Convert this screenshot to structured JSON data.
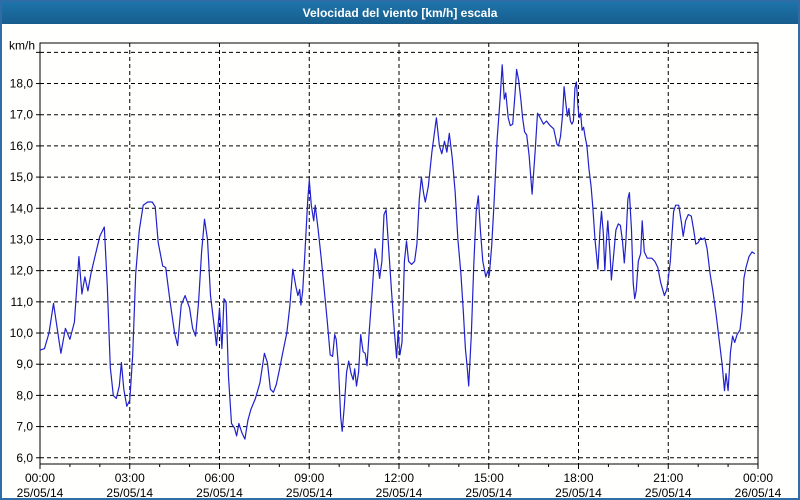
{
  "window": {
    "title": "Velocidad del viento [km/h] escala"
  },
  "colors": {
    "title_bar_bg": "#1a6a9c",
    "title_text": "#ffffff",
    "outer_border": "#2e6da6",
    "plot_bg": "#fffffd",
    "grid": "#000000",
    "axis_text": "#000000",
    "line": "#2121cc"
  },
  "chart_data": {
    "type": "line",
    "title": "Velocidad del viento [km/h] escala",
    "ylabel": "km/h",
    "y_unit_label": "km/h",
    "grid": "dashed",
    "legend": "none",
    "ylim": [
      5.8,
      19.3
    ],
    "y_grid_values": [
      6,
      7,
      8,
      9,
      10,
      11,
      12,
      13,
      14,
      15,
      16,
      17,
      18,
      19
    ],
    "y_ticks": [
      {
        "value": 6,
        "label": "6,0"
      },
      {
        "value": 7,
        "label": "7,0"
      },
      {
        "value": 8,
        "label": "8,0"
      },
      {
        "value": 9,
        "label": "9,0"
      },
      {
        "value": 10,
        "label": "10,0"
      },
      {
        "value": 11,
        "label": "11,0"
      },
      {
        "value": 12,
        "label": "12,0"
      },
      {
        "value": 13,
        "label": "13,0"
      },
      {
        "value": 14,
        "label": "14,0"
      },
      {
        "value": 15,
        "label": "15,0"
      },
      {
        "value": 16,
        "label": "16,0"
      },
      {
        "value": 17,
        "label": "17,0"
      },
      {
        "value": 18,
        "label": "18,0"
      }
    ],
    "xlim_hours": [
      0,
      24
    ],
    "minor_tick_every_hours": 1,
    "x_ticks": [
      {
        "hour": 0,
        "time": "00:00",
        "date": "25/05/14"
      },
      {
        "hour": 3,
        "time": "03:00",
        "date": "25/05/14"
      },
      {
        "hour": 6,
        "time": "06:00",
        "date": "25/05/14"
      },
      {
        "hour": 9,
        "time": "09:00",
        "date": "25/05/14"
      },
      {
        "hour": 12,
        "time": "12:00",
        "date": "25/05/14"
      },
      {
        "hour": 15,
        "time": "15:00",
        "date": "25/05/14"
      },
      {
        "hour": 18,
        "time": "18:00",
        "date": "25/05/14"
      },
      {
        "hour": 21,
        "time": "21:00",
        "date": "25/05/14"
      },
      {
        "hour": 24,
        "time": "00:00",
        "date": "26/05/14"
      }
    ],
    "series": [
      {
        "name": "Velocidad del viento [km/h]",
        "points": [
          [
            0,
            9.45
          ],
          [
            0.15,
            9.5
          ],
          [
            0.3,
            10.0
          ],
          [
            0.45,
            10.95
          ],
          [
            0.55,
            10.3
          ],
          [
            0.7,
            9.35
          ],
          [
            0.85,
            10.15
          ],
          [
            1.0,
            9.8
          ],
          [
            1.15,
            10.35
          ],
          [
            1.3,
            12.45
          ],
          [
            1.4,
            11.25
          ],
          [
            1.5,
            11.8
          ],
          [
            1.6,
            11.35
          ],
          [
            1.7,
            11.9
          ],
          [
            1.85,
            12.5
          ],
          [
            2.0,
            13.1
          ],
          [
            2.15,
            13.4
          ],
          [
            2.25,
            11.5
          ],
          [
            2.35,
            8.9
          ],
          [
            2.45,
            8.0
          ],
          [
            2.55,
            7.9
          ],
          [
            2.65,
            8.3
          ],
          [
            2.72,
            9.05
          ],
          [
            2.8,
            8.2
          ],
          [
            2.9,
            7.65
          ],
          [
            3.0,
            7.85
          ],
          [
            3.1,
            9.3
          ],
          [
            3.2,
            11.9
          ],
          [
            3.32,
            13.3
          ],
          [
            3.45,
            14.1
          ],
          [
            3.6,
            14.2
          ],
          [
            3.75,
            14.2
          ],
          [
            3.85,
            14.05
          ],
          [
            3.95,
            12.9
          ],
          [
            4.1,
            12.15
          ],
          [
            4.2,
            12.1
          ],
          [
            4.35,
            11.0
          ],
          [
            4.5,
            10.0
          ],
          [
            4.6,
            9.6
          ],
          [
            4.72,
            10.9
          ],
          [
            4.85,
            11.2
          ],
          [
            5.0,
            10.8
          ],
          [
            5.1,
            10.15
          ],
          [
            5.2,
            9.9
          ],
          [
            5.3,
            11.0
          ],
          [
            5.4,
            12.6
          ],
          [
            5.5,
            13.65
          ],
          [
            5.6,
            13.0
          ],
          [
            5.7,
            11.2
          ],
          [
            5.8,
            10.4
          ],
          [
            5.9,
            9.6
          ],
          [
            6.0,
            10.8
          ],
          [
            6.08,
            9.5
          ],
          [
            6.15,
            11.1
          ],
          [
            6.22,
            11.0
          ],
          [
            6.3,
            8.6
          ],
          [
            6.4,
            7.1
          ],
          [
            6.5,
            6.95
          ],
          [
            6.57,
            6.7
          ],
          [
            6.65,
            7.1
          ],
          [
            6.75,
            6.8
          ],
          [
            6.85,
            6.6
          ],
          [
            6.95,
            7.2
          ],
          [
            7.05,
            7.55
          ],
          [
            7.2,
            7.9
          ],
          [
            7.35,
            8.4
          ],
          [
            7.5,
            9.35
          ],
          [
            7.6,
            9.05
          ],
          [
            7.7,
            8.2
          ],
          [
            7.8,
            8.1
          ],
          [
            7.9,
            8.35
          ],
          [
            8.0,
            8.8
          ],
          [
            8.1,
            9.3
          ],
          [
            8.25,
            10.0
          ],
          [
            8.35,
            10.85
          ],
          [
            8.45,
            12.05
          ],
          [
            8.55,
            11.5
          ],
          [
            8.62,
            11.2
          ],
          [
            8.68,
            11.4
          ],
          [
            8.72,
            10.9
          ],
          [
            8.78,
            11.35
          ],
          [
            8.85,
            12.5
          ],
          [
            8.95,
            14.3
          ],
          [
            9.0,
            14.9
          ],
          [
            9.07,
            14.1
          ],
          [
            9.15,
            13.6
          ],
          [
            9.2,
            14.1
          ],
          [
            9.3,
            13.3
          ],
          [
            9.4,
            12.4
          ],
          [
            9.5,
            11.4
          ],
          [
            9.6,
            10.4
          ],
          [
            9.7,
            9.3
          ],
          [
            9.78,
            9.25
          ],
          [
            9.85,
            9.95
          ],
          [
            9.9,
            9.8
          ],
          [
            9.97,
            9.0
          ],
          [
            10.05,
            7.3
          ],
          [
            10.1,
            6.85
          ],
          [
            10.17,
            7.65
          ],
          [
            10.25,
            8.75
          ],
          [
            10.32,
            9.1
          ],
          [
            10.4,
            8.7
          ],
          [
            10.47,
            8.5
          ],
          [
            10.52,
            8.85
          ],
          [
            10.58,
            8.3
          ],
          [
            10.65,
            8.75
          ],
          [
            10.72,
            9.95
          ],
          [
            10.8,
            9.4
          ],
          [
            10.87,
            9.35
          ],
          [
            10.93,
            8.95
          ],
          [
            11.0,
            10.0
          ],
          [
            11.1,
            11.3
          ],
          [
            11.2,
            12.7
          ],
          [
            11.28,
            12.3
          ],
          [
            11.35,
            11.75
          ],
          [
            11.43,
            12.3
          ],
          [
            11.5,
            13.8
          ],
          [
            11.57,
            13.95
          ],
          [
            11.65,
            12.8
          ],
          [
            11.75,
            11.35
          ],
          [
            11.85,
            10.0
          ],
          [
            11.92,
            9.2
          ],
          [
            11.97,
            10.05
          ],
          [
            12.03,
            9.3
          ],
          [
            12.1,
            9.7
          ],
          [
            12.18,
            12.3
          ],
          [
            12.25,
            12.95
          ],
          [
            12.32,
            12.3
          ],
          [
            12.42,
            12.2
          ],
          [
            12.52,
            12.3
          ],
          [
            12.6,
            12.85
          ],
          [
            12.68,
            14.3
          ],
          [
            12.75,
            15.0
          ],
          [
            12.82,
            14.5
          ],
          [
            12.88,
            14.2
          ],
          [
            12.98,
            14.7
          ],
          [
            13.1,
            15.8
          ],
          [
            13.25,
            16.9
          ],
          [
            13.35,
            16.0
          ],
          [
            13.43,
            15.75
          ],
          [
            13.52,
            16.15
          ],
          [
            13.6,
            15.8
          ],
          [
            13.68,
            16.4
          ],
          [
            13.78,
            15.6
          ],
          [
            13.88,
            14.5
          ],
          [
            13.97,
            13.0
          ],
          [
            14.07,
            11.9
          ],
          [
            14.15,
            10.7
          ],
          [
            14.22,
            9.5
          ],
          [
            14.28,
            8.9
          ],
          [
            14.33,
            8.3
          ],
          [
            14.42,
            10.0
          ],
          [
            14.5,
            12.2
          ],
          [
            14.58,
            13.9
          ],
          [
            14.65,
            14.4
          ],
          [
            14.72,
            13.3
          ],
          [
            14.8,
            12.3
          ],
          [
            14.9,
            11.8
          ],
          [
            14.97,
            12.0
          ],
          [
            15.02,
            11.85
          ],
          [
            15.1,
            12.8
          ],
          [
            15.18,
            14.2
          ],
          [
            15.28,
            16.2
          ],
          [
            15.38,
            17.5
          ],
          [
            15.45,
            18.6
          ],
          [
            15.52,
            17.5
          ],
          [
            15.57,
            17.7
          ],
          [
            15.65,
            16.9
          ],
          [
            15.72,
            16.65
          ],
          [
            15.8,
            16.7
          ],
          [
            15.88,
            17.7
          ],
          [
            15.93,
            18.45
          ],
          [
            16.0,
            18.1
          ],
          [
            16.07,
            17.5
          ],
          [
            16.13,
            16.9
          ],
          [
            16.2,
            16.45
          ],
          [
            16.27,
            16.35
          ],
          [
            16.35,
            15.7
          ],
          [
            16.45,
            14.45
          ],
          [
            16.55,
            15.8
          ],
          [
            16.63,
            17.05
          ],
          [
            16.72,
            16.9
          ],
          [
            16.83,
            16.7
          ],
          [
            16.93,
            16.8
          ],
          [
            17.05,
            16.65
          ],
          [
            17.17,
            16.55
          ],
          [
            17.28,
            16.05
          ],
          [
            17.33,
            16.0
          ],
          [
            17.4,
            16.3
          ],
          [
            17.47,
            17.0
          ],
          [
            17.52,
            17.9
          ],
          [
            17.58,
            17.35
          ],
          [
            17.63,
            16.95
          ],
          [
            17.68,
            17.2
          ],
          [
            17.73,
            16.8
          ],
          [
            17.78,
            16.7
          ],
          [
            17.83,
            16.8
          ],
          [
            17.88,
            17.85
          ],
          [
            17.93,
            18.05
          ],
          [
            17.98,
            17.3
          ],
          [
            18.02,
            16.9
          ],
          [
            18.07,
            17.05
          ],
          [
            18.12,
            16.5
          ],
          [
            18.17,
            16.6
          ],
          [
            18.22,
            16.3
          ],
          [
            18.28,
            16.0
          ],
          [
            18.35,
            15.25
          ],
          [
            18.42,
            14.7
          ],
          [
            18.48,
            14.0
          ],
          [
            18.55,
            13.0
          ],
          [
            18.65,
            12.05
          ],
          [
            18.72,
            13.3
          ],
          [
            18.77,
            13.9
          ],
          [
            18.83,
            13.2
          ],
          [
            18.88,
            12.0
          ],
          [
            18.93,
            12.9
          ],
          [
            18.98,
            13.6
          ],
          [
            19.05,
            12.6
          ],
          [
            19.1,
            11.7
          ],
          [
            19.17,
            12.45
          ],
          [
            19.25,
            13.3
          ],
          [
            19.33,
            13.5
          ],
          [
            19.4,
            13.45
          ],
          [
            19.47,
            12.95
          ],
          [
            19.53,
            12.25
          ],
          [
            19.58,
            12.9
          ],
          [
            19.65,
            14.3
          ],
          [
            19.7,
            14.5
          ],
          [
            19.77,
            13.3
          ],
          [
            19.83,
            11.6
          ],
          [
            19.88,
            11.1
          ],
          [
            19.93,
            11.35
          ],
          [
            20.0,
            12.3
          ],
          [
            20.08,
            12.55
          ],
          [
            20.13,
            13.6
          ],
          [
            20.2,
            12.6
          ],
          [
            20.3,
            12.4
          ],
          [
            20.45,
            12.4
          ],
          [
            20.55,
            12.3
          ],
          [
            20.65,
            12.1
          ],
          [
            20.75,
            11.6
          ],
          [
            20.87,
            11.2
          ],
          [
            20.95,
            11.4
          ],
          [
            21.0,
            11.75
          ],
          [
            21.07,
            12.3
          ],
          [
            21.13,
            13.2
          ],
          [
            21.18,
            13.9
          ],
          [
            21.25,
            14.1
          ],
          [
            21.35,
            14.1
          ],
          [
            21.44,
            13.55
          ],
          [
            21.5,
            13.1
          ],
          [
            21.58,
            13.6
          ],
          [
            21.67,
            13.8
          ],
          [
            21.77,
            13.75
          ],
          [
            21.85,
            13.3
          ],
          [
            21.92,
            12.85
          ],
          [
            22.0,
            12.9
          ],
          [
            22.08,
            13.05
          ],
          [
            22.15,
            13.0
          ],
          [
            22.22,
            13.05
          ],
          [
            22.3,
            12.7
          ],
          [
            22.4,
            11.9
          ],
          [
            22.5,
            11.3
          ],
          [
            22.6,
            10.6
          ],
          [
            22.7,
            9.8
          ],
          [
            22.8,
            9.0
          ],
          [
            22.88,
            8.15
          ],
          [
            22.93,
            8.7
          ],
          [
            23.0,
            8.15
          ],
          [
            23.08,
            9.4
          ],
          [
            23.15,
            9.9
          ],
          [
            23.22,
            9.7
          ],
          [
            23.3,
            9.95
          ],
          [
            23.4,
            10.1
          ],
          [
            23.47,
            10.7
          ],
          [
            23.53,
            11.75
          ],
          [
            23.6,
            12.1
          ],
          [
            23.7,
            12.45
          ],
          [
            23.8,
            12.6
          ],
          [
            23.88,
            12.55
          ]
        ]
      }
    ]
  }
}
